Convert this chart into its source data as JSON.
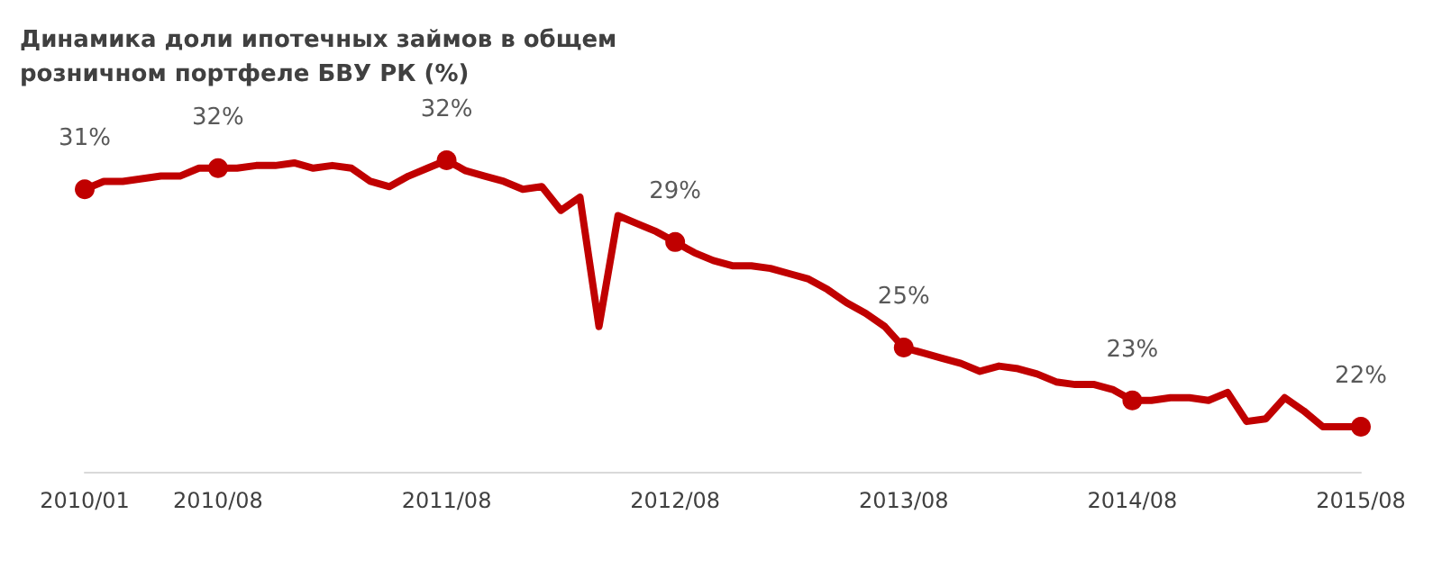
{
  "chart_data": {
    "type": "line",
    "title": "Динамика доли ипотечных займов в общем розничном портфеле БВУ РК (%)",
    "categories": [
      "2010/01",
      null,
      null,
      null,
      null,
      null,
      null,
      "2010/08",
      null,
      null,
      null,
      null,
      null,
      null,
      null,
      null,
      null,
      null,
      null,
      "2011/08",
      null,
      null,
      null,
      null,
      null,
      null,
      null,
      null,
      null,
      null,
      null,
      "2012/08",
      null,
      null,
      null,
      null,
      null,
      null,
      null,
      null,
      null,
      null,
      null,
      "2013/08",
      null,
      null,
      null,
      null,
      null,
      null,
      null,
      null,
      null,
      null,
      null,
      "2014/08",
      null,
      null,
      null,
      null,
      null,
      null,
      null,
      null,
      null,
      null,
      null,
      "2015/08"
    ],
    "series": [
      {
        "color": "#c00000",
        "values": [
          31.0,
          31.3,
          31.3,
          31.4,
          31.5,
          31.5,
          31.8,
          31.8,
          31.8,
          31.9,
          31.9,
          32.0,
          31.8,
          31.9,
          31.8,
          31.3,
          31.1,
          31.5,
          31.8,
          32.1,
          31.7,
          31.5,
          31.3,
          31.0,
          31.1,
          30.2,
          30.7,
          25.8,
          30.0,
          29.7,
          29.4,
          29.0,
          28.6,
          28.3,
          28.1,
          28.1,
          28.0,
          27.8,
          27.6,
          27.2,
          26.7,
          26.3,
          25.8,
          25.0,
          24.8,
          24.6,
          24.4,
          24.1,
          24.3,
          24.2,
          24.0,
          23.7,
          23.6,
          23.6,
          23.4,
          23.0,
          23.0,
          23.1,
          23.1,
          23.0,
          23.3,
          22.2,
          22.3,
          23.1,
          22.6,
          22.0,
          22.0,
          22.0
        ],
        "value_labels": [
          "31%",
          null,
          null,
          null,
          null,
          null,
          null,
          "32%",
          null,
          null,
          null,
          null,
          null,
          null,
          null,
          null,
          null,
          null,
          null,
          "32%",
          null,
          null,
          null,
          null,
          null,
          null,
          null,
          null,
          null,
          null,
          null,
          "29%",
          null,
          null,
          null,
          null,
          null,
          null,
          null,
          null,
          null,
          null,
          null,
          "25%",
          null,
          null,
          null,
          null,
          null,
          null,
          null,
          null,
          null,
          null,
          null,
          "23%",
          null,
          null,
          null,
          null,
          null,
          null,
          null,
          null,
          null,
          null,
          null,
          "22%"
        ]
      }
    ],
    "line_style": "solid",
    "grid": false
  }
}
